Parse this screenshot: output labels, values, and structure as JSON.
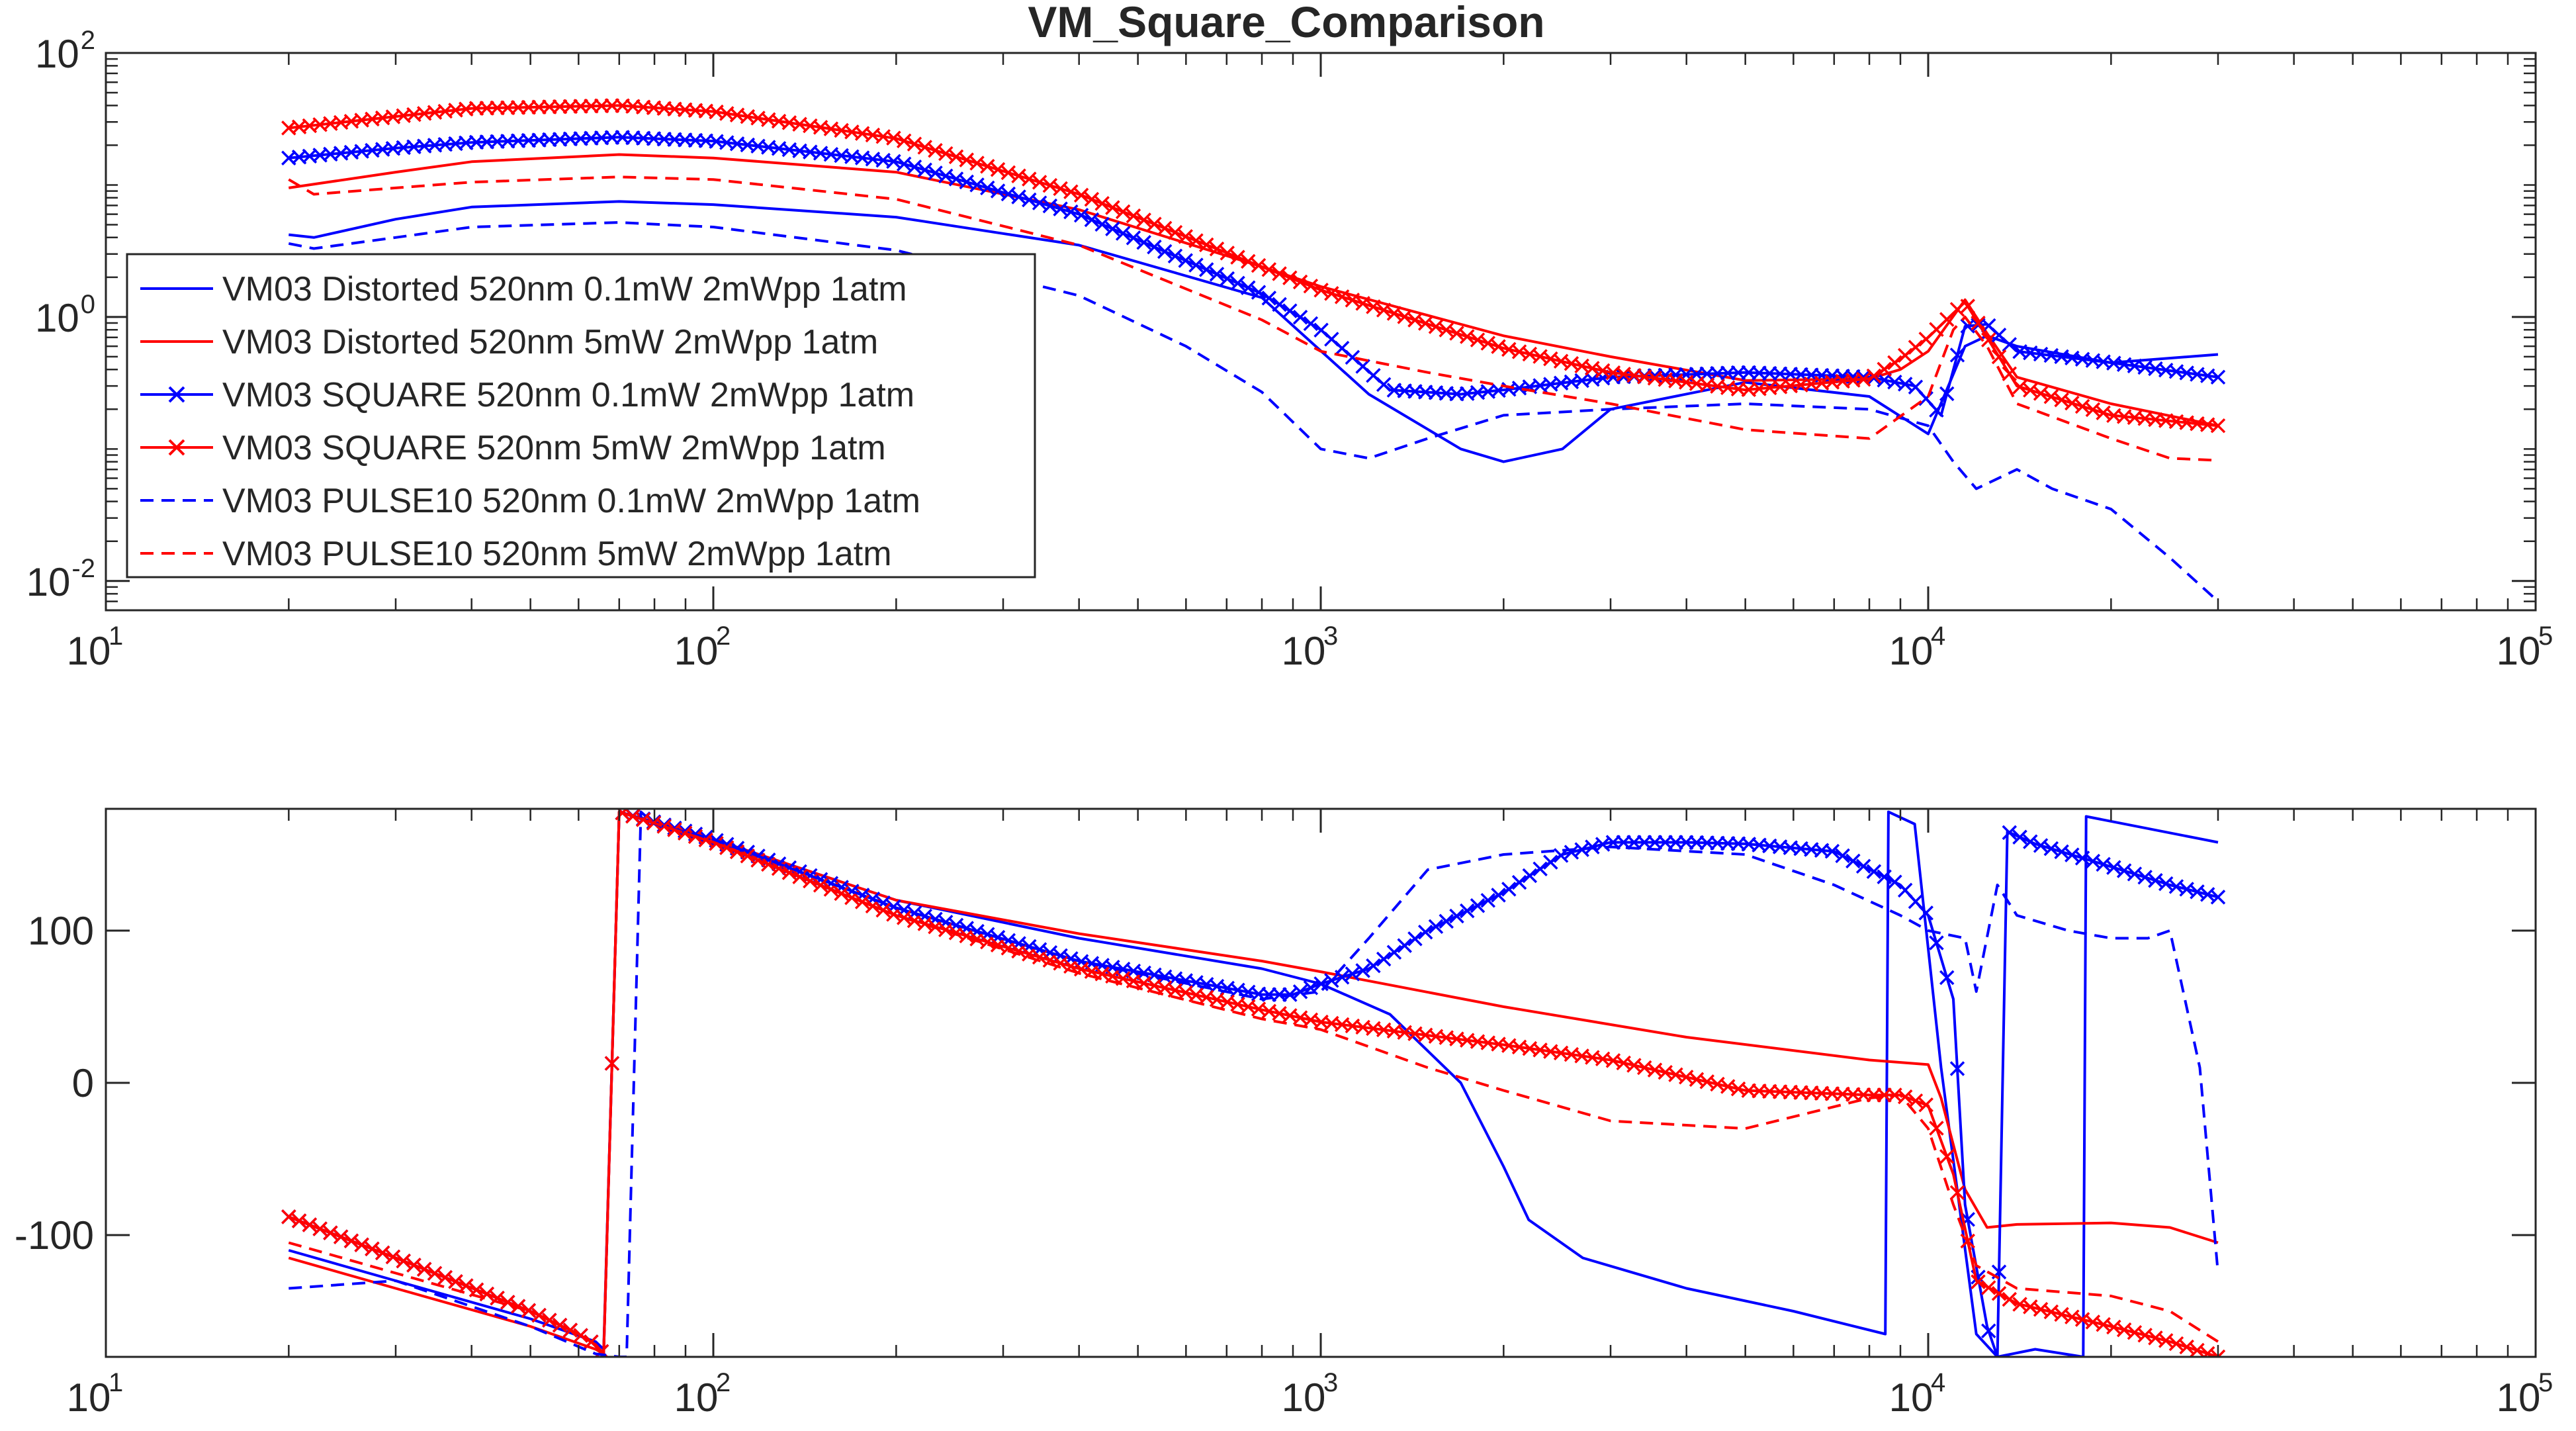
{
  "chart_data": [
    {
      "type": "line",
      "title": "VM_Square_Comparison",
      "xscale": "log",
      "yscale": "log",
      "xlim": [
        10,
        100000
      ],
      "ylim": [
        0.006,
        100
      ],
      "xticks": [
        {
          "base": "10",
          "exp": "1"
        },
        {
          "base": "10",
          "exp": "2"
        },
        {
          "base": "10",
          "exp": "3"
        },
        {
          "base": "10",
          "exp": "4"
        },
        {
          "base": "10",
          "exp": "5"
        }
      ],
      "yticks": [
        {
          "base": "10",
          "exp": "-2"
        },
        {
          "base": "10",
          "exp": "0"
        },
        {
          "base": "10",
          "exp": "2"
        }
      ],
      "xtick_values": [
        10,
        100,
        1000,
        10000,
        100000
      ],
      "ytick_values": [
        0.01,
        1,
        100
      ],
      "legend_position": "left",
      "series": [
        {
          "name": "VM03 Distorted 520nm 0.1mW 2mWpp 1atm",
          "color": "#0000ff",
          "dash": "solid",
          "marker": "none",
          "x": [
            20,
            22,
            30,
            40,
            70,
            100,
            200,
            400,
            800,
            1200,
            1700,
            2000,
            2500,
            3000,
            5000,
            8000,
            10000,
            11500,
            12500,
            14000,
            20000,
            30000
          ],
          "y": [
            4.2,
            4.0,
            5.5,
            6.8,
            7.5,
            7.1,
            5.7,
            3.5,
            1.4,
            0.26,
            0.1,
            0.08,
            0.1,
            0.2,
            0.32,
            0.25,
            0.13,
            0.6,
            0.72,
            0.6,
            0.45,
            0.52
          ]
        },
        {
          "name": "VM03 Distorted 520nm 5mW 2mWpp 1atm",
          "color": "#ff0000",
          "dash": "solid",
          "marker": "none",
          "x": [
            20,
            30,
            40,
            70,
            100,
            200,
            400,
            800,
            1000,
            2000,
            3000,
            5000,
            8000,
            9000,
            10000,
            11500,
            12500,
            14000,
            20000,
            30000
          ],
          "y": [
            9.5,
            12.5,
            15,
            17,
            16,
            12.5,
            6.5,
            2.4,
            1.7,
            0.72,
            0.5,
            0.33,
            0.34,
            0.4,
            0.55,
            1.35,
            0.75,
            0.35,
            0.22,
            0.15
          ]
        },
        {
          "name": "VM03 SQUARE 520nm 0.1mW 2mWpp 1atm",
          "color": "#0000ff",
          "dash": "solid",
          "marker": "x",
          "x": [
            20,
            30,
            40,
            70,
            100,
            200,
            400,
            800,
            1000,
            1300,
            1700,
            2000,
            3000,
            5000,
            8000,
            9500,
            10500,
            11500,
            12500,
            14000,
            20000,
            30000
          ],
          "y": [
            16,
            19,
            21,
            23,
            21.5,
            15,
            6,
            1.5,
            0.8,
            0.28,
            0.26,
            0.28,
            0.35,
            0.38,
            0.35,
            0.3,
            0.18,
            0.85,
            0.88,
            0.55,
            0.45,
            0.35
          ]
        },
        {
          "name": "VM03 SQUARE 520nm 5mW 2mWpp 1atm",
          "color": "#ff0000",
          "dash": "solid",
          "marker": "x",
          "x": [
            20,
            30,
            40,
            70,
            100,
            200,
            400,
            800,
            1000,
            2000,
            3000,
            5000,
            8000,
            9000,
            10000,
            11500,
            12500,
            14000,
            20000,
            30000
          ],
          "y": [
            27,
            33,
            38,
            40,
            36,
            22.5,
            8.5,
            2.4,
            1.6,
            0.58,
            0.38,
            0.28,
            0.34,
            0.48,
            0.7,
            1.3,
            0.7,
            0.3,
            0.18,
            0.15
          ]
        },
        {
          "name": "VM03 PULSE10 520nm 0.1mW 2mWpp 1atm",
          "color": "#0000ff",
          "dash": "dashed",
          "marker": "none",
          "x": [
            20,
            22,
            30,
            40,
            70,
            100,
            200,
            400,
            600,
            800,
            1000,
            1200,
            1500,
            2000,
            3000,
            5000,
            8000,
            10000,
            11000,
            12000,
            14000,
            16000,
            20000,
            25000,
            30000
          ],
          "y": [
            3.6,
            3.3,
            4.0,
            4.8,
            5.2,
            4.8,
            3.2,
            1.45,
            0.6,
            0.27,
            0.1,
            0.085,
            0.12,
            0.18,
            0.2,
            0.22,
            0.2,
            0.15,
            0.08,
            0.05,
            0.07,
            0.05,
            0.035,
            0.015,
            0.007
          ]
        },
        {
          "name": "VM03 PULSE10 520nm 5mW 2mWpp 1atm",
          "color": "#ff0000",
          "dash": "dashed",
          "marker": "none",
          "x": [
            20,
            22,
            30,
            40,
            70,
            100,
            200,
            400,
            800,
            1000,
            1500,
            2000,
            3000,
            5000,
            8000,
            10000,
            11000,
            11500,
            12500,
            14000,
            20000,
            25000,
            30000
          ],
          "y": [
            11,
            8.5,
            9.5,
            10.5,
            11.5,
            11,
            7.8,
            3.5,
            0.95,
            0.55,
            0.38,
            0.3,
            0.22,
            0.14,
            0.12,
            0.25,
            0.8,
            1.0,
            0.6,
            0.22,
            0.12,
            0.085,
            0.082
          ]
        }
      ]
    },
    {
      "type": "line",
      "title": "",
      "xscale": "log",
      "yscale": "linear",
      "xlim": [
        10,
        100000
      ],
      "ylim": [
        -180,
        180
      ],
      "xticks": [
        {
          "base": "10",
          "exp": "1"
        },
        {
          "base": "10",
          "exp": "2"
        },
        {
          "base": "10",
          "exp": "3"
        },
        {
          "base": "10",
          "exp": "4"
        },
        {
          "base": "10",
          "exp": "5"
        }
      ],
      "yticks": [
        "-100",
        "0",
        "100"
      ],
      "xtick_values": [
        10,
        100,
        1000,
        10000,
        100000
      ],
      "ytick_values": [
        -100,
        0,
        100
      ],
      "series": [
        {
          "color": "#0000ff",
          "dash": "solid",
          "marker": "none",
          "x": [
            20,
            30,
            50,
            64,
            66,
            70,
            100,
            200,
            400,
            800,
            1000,
            1300,
            1700,
            2000,
            2200,
            2700,
            4000,
            6000,
            8500,
            8600,
            9500,
            10500,
            12000,
            13000,
            15000,
            18000,
            18200,
            30000
          ],
          "y": [
            -110,
            -130,
            -155,
            -170,
            -175,
            178,
            160,
            120,
            95,
            75,
            65,
            45,
            0,
            -55,
            -90,
            -115,
            -135,
            -150,
            -165,
            178,
            170,
            10,
            -165,
            -180,
            -175,
            -180,
            175,
            158
          ]
        },
        {
          "color": "#ff0000",
          "dash": "solid",
          "marker": "none",
          "x": [
            20,
            30,
            50,
            64,
            66,
            70,
            100,
            200,
            400,
            800,
            1000,
            2000,
            4000,
            8000,
            10000,
            10500,
            11500,
            12500,
            14000,
            20000,
            25000,
            30000
          ],
          "y": [
            -115,
            -135,
            -160,
            -175,
            -178,
            178,
            160,
            120,
            98,
            80,
            73,
            50,
            30,
            15,
            12,
            -10,
            -70,
            -95,
            -93,
            -92,
            -95,
            -105
          ]
        },
        {
          "color": "#0000ff",
          "dash": "solid",
          "marker": "x",
          "x": [
            20,
            30,
            50,
            60,
            64,
            66,
            70,
            100,
            200,
            400,
            800,
            900,
            1000,
            1200,
            1500,
            2000,
            2500,
            3000,
            4000,
            5000,
            7000,
            9000,
            10000,
            11000,
            11500,
            12500,
            13000,
            13500,
            15000,
            20000,
            25000,
            30000
          ],
          "y": [
            -88,
            -115,
            -150,
            -165,
            -172,
            -178,
            178,
            160,
            115,
            80,
            58,
            58,
            65,
            75,
            100,
            125,
            150,
            158,
            158,
            157,
            152,
            130,
            110,
            55,
            -80,
            -160,
            -180,
            165,
            157,
            142,
            130,
            122
          ]
        },
        {
          "color": "#ff0000",
          "dash": "solid",
          "marker": "x",
          "x": [
            20,
            30,
            50,
            60,
            64,
            66,
            70,
            100,
            200,
            400,
            800,
            1000,
            2000,
            3000,
            5000,
            8000,
            9000,
            10000,
            11000,
            12000,
            14000,
            20000,
            25000,
            30000
          ],
          "y": [
            -88,
            -115,
            -150,
            -165,
            -172,
            -178,
            178,
            158,
            110,
            75,
            48,
            40,
            25,
            15,
            -5,
            -8,
            -8,
            -15,
            -60,
            -130,
            -145,
            -160,
            -170,
            -180
          ]
        },
        {
          "color": "#0000ff",
          "dash": "dashed",
          "marker": "none",
          "x": [
            20,
            30,
            50,
            64,
            70,
            72,
            76,
            80,
            100,
            200,
            400,
            800,
            1000,
            1200,
            1500,
            2000,
            3000,
            5000,
            7000,
            9000,
            10000,
            11500,
            12000,
            13000,
            14000,
            17000,
            20000,
            23000,
            25000,
            28000,
            30000
          ],
          "y": [
            -135,
            -130,
            -160,
            -178,
            -180,
            -180,
            178,
            170,
            160,
            115,
            80,
            55,
            60,
            95,
            140,
            150,
            155,
            150,
            130,
            110,
            100,
            95,
            60,
            130,
            110,
            100,
            95,
            95,
            100,
            10,
            -125
          ]
        },
        {
          "color": "#ff0000",
          "dash": "dashed",
          "marker": "none",
          "x": [
            20,
            30,
            50,
            60,
            64,
            66,
            70,
            100,
            200,
            400,
            800,
            1000,
            1500,
            2000,
            3000,
            5000,
            8000,
            9000,
            10000,
            11000,
            12000,
            14000,
            20000,
            25000,
            30000
          ],
          "y": [
            -105,
            -125,
            -150,
            -165,
            -172,
            -178,
            178,
            158,
            110,
            72,
            42,
            35,
            10,
            -5,
            -25,
            -30,
            -10,
            -8,
            -30,
            -80,
            -120,
            -135,
            -140,
            -150,
            -170
          ]
        }
      ]
    }
  ]
}
